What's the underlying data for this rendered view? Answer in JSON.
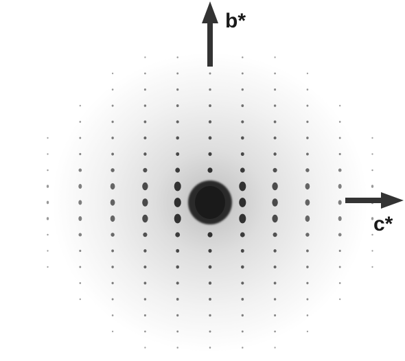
{
  "labels": {
    "b_axis": "b*",
    "c_axis": "c*"
  }
}
